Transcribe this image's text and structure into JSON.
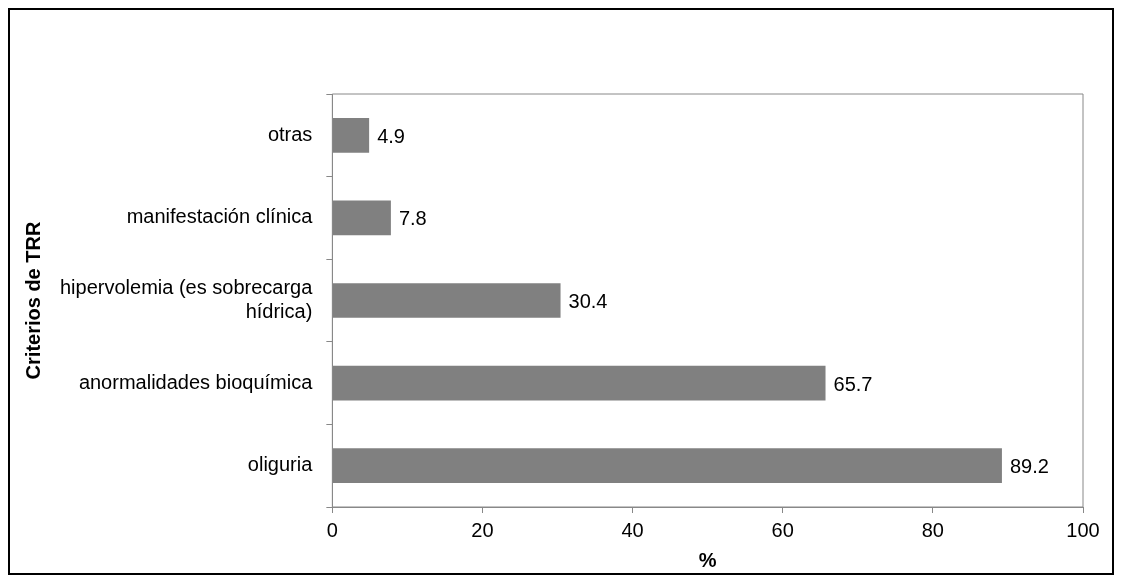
{
  "chart_data": {
    "type": "bar",
    "orientation": "horizontal",
    "categories": [
      "otras",
      "manifestación clínica",
      "hipervolemia (es sobrecarga hídrica)",
      "anormalidades bioquímica",
      "oliguria"
    ],
    "values": [
      4.9,
      7.8,
      30.4,
      65.7,
      89.2
    ],
    "color": "#808080",
    "xlim": [
      0,
      100
    ],
    "xticks": [
      0,
      20,
      40,
      60,
      80,
      100
    ],
    "xlabel": "%",
    "ylabel": "Criterios de TRR",
    "data_labels": true,
    "grid": false,
    "legend": false
  }
}
